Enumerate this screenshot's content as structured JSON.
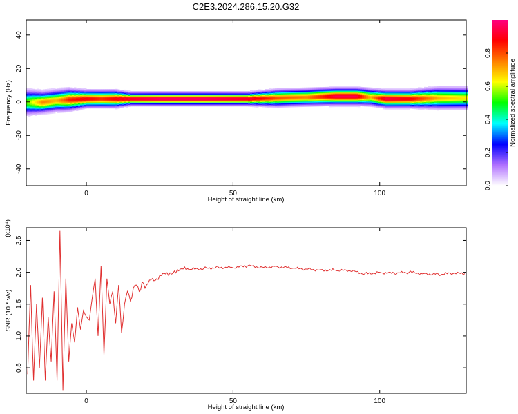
{
  "title": "C2E3.2024.286.15.20.G32",
  "chart_data": [
    {
      "type": "heatmap",
      "xlabel": "Height of straight line (km)",
      "ylabel": "Frequency (Hz)",
      "xlim": [
        -20.5,
        129.5
      ],
      "ylim": [
        -50,
        49
      ],
      "xticks": [
        0,
        50,
        100
      ],
      "xtick_labels": [
        "0",
        "50",
        "100"
      ],
      "yticks": [
        -40,
        -20,
        0,
        20,
        40
      ],
      "ytick_labels": [
        "-40",
        "-20",
        "0",
        "20",
        "40"
      ],
      "grid": false,
      "colorbar": {
        "label": "Normalized spectral amplitude",
        "range": [
          0,
          1
        ],
        "ticks": [
          0,
          0.2,
          0.4,
          0.6,
          0.8
        ],
        "tick_labels": [
          "0.0",
          "0.2",
          "0.4",
          "0.6",
          "0.8"
        ],
        "colors": [
          "#ffffff",
          "#b070ff",
          "#0000ff",
          "#00ffff",
          "#00ff00",
          "#ffff00",
          "#ff7f00",
          "#ff0000",
          "#ff0080"
        ]
      },
      "band": [
        {
          "x": -20,
          "center": 0.0,
          "width": 6,
          "amp": 0.55
        },
        {
          "x": -15,
          "center": 0.0,
          "width": 5,
          "amp": 0.75
        },
        {
          "x": -10,
          "center": 1.0,
          "width": 5,
          "amp": 0.7
        },
        {
          "x": -6,
          "center": 1.5,
          "width": 5,
          "amp": 0.85
        },
        {
          "x": 0,
          "center": 2.0,
          "width": 4,
          "amp": 0.9
        },
        {
          "x": 5,
          "center": 2.0,
          "width": 4,
          "amp": 0.85
        },
        {
          "x": 10,
          "center": 2.0,
          "width": 4,
          "amp": 0.9
        },
        {
          "x": 15,
          "center": 2.0,
          "width": 3,
          "amp": 0.95
        },
        {
          "x": 25,
          "center": 2.0,
          "width": 3,
          "amp": 1.0
        },
        {
          "x": 40,
          "center": 2.0,
          "width": 3,
          "amp": 1.0
        },
        {
          "x": 55,
          "center": 2.0,
          "width": 3,
          "amp": 0.95
        },
        {
          "x": 65,
          "center": 2.5,
          "width": 4,
          "amp": 0.8
        },
        {
          "x": 75,
          "center": 3.0,
          "width": 4,
          "amp": 0.75
        },
        {
          "x": 85,
          "center": 3.5,
          "width": 4,
          "amp": 0.95
        },
        {
          "x": 92,
          "center": 3.5,
          "width": 4,
          "amp": 0.95
        },
        {
          "x": 97,
          "center": 3.0,
          "width": 4,
          "amp": 0.7
        },
        {
          "x": 102,
          "center": 2.0,
          "width": 4,
          "amp": 0.95
        },
        {
          "x": 110,
          "center": 2.0,
          "width": 4,
          "amp": 0.9
        },
        {
          "x": 120,
          "center": 2.5,
          "width": 5,
          "amp": 0.7
        },
        {
          "x": 129,
          "center": 2.5,
          "width": 5,
          "amp": 0.65
        }
      ]
    },
    {
      "type": "line",
      "xlabel": "Height of straight line (km)",
      "ylabel": "SNR (10 * v/v)",
      "multiplier": "(x10⁴)",
      "xlim": [
        -20.5,
        129.5
      ],
      "ylim": [
        0.1,
        2.7
      ],
      "xticks": [
        0,
        50,
        100
      ],
      "xtick_labels": [
        "0",
        "50",
        "100"
      ],
      "yticks": [
        0.5,
        1.0,
        1.5,
        2.0,
        2.5
      ],
      "ytick_labels": [
        "0.5",
        "1.0",
        "1.5",
        "2.0",
        "2.5"
      ],
      "grid": false,
      "series": [
        {
          "color": "#e03030",
          "x": [
            -20,
            -19,
            -18,
            -17,
            -16,
            -15,
            -14,
            -13,
            -12,
            -11,
            -10,
            -9,
            -8,
            -7,
            -6,
            -5,
            -4,
            -3,
            -2,
            -1,
            0,
            1,
            2,
            3,
            4,
            5,
            6,
            7,
            8,
            9,
            10,
            11,
            12,
            13,
            14,
            15,
            16,
            17,
            18,
            19,
            20,
            22,
            24,
            26,
            28,
            30,
            32,
            35,
            40,
            45,
            50,
            55,
            60,
            65,
            70,
            75,
            80,
            85,
            90,
            95,
            100,
            105,
            110,
            115,
            120,
            125,
            129
          ],
          "y": [
            0.4,
            1.8,
            0.3,
            1.5,
            0.5,
            1.6,
            0.3,
            1.3,
            0.6,
            1.7,
            0.3,
            2.65,
            0.15,
            1.9,
            0.6,
            1.2,
            0.9,
            1.45,
            1.1,
            1.4,
            1.3,
            1.25,
            1.6,
            1.9,
            1.0,
            2.1,
            0.7,
            1.9,
            1.5,
            1.7,
            1.2,
            1.8,
            1.05,
            1.5,
            1.7,
            1.55,
            1.75,
            1.8,
            1.7,
            1.85,
            1.75,
            1.88,
            1.9,
            1.98,
            1.95,
            2.02,
            2.05,
            2.04,
            2.06,
            2.08,
            2.07,
            2.1,
            2.08,
            2.09,
            2.06,
            2.05,
            2.04,
            2.03,
            2.02,
            1.98,
            2.0,
            1.98,
            2.0,
            1.98,
            1.97,
            1.98,
            1.98
          ]
        }
      ]
    }
  ]
}
